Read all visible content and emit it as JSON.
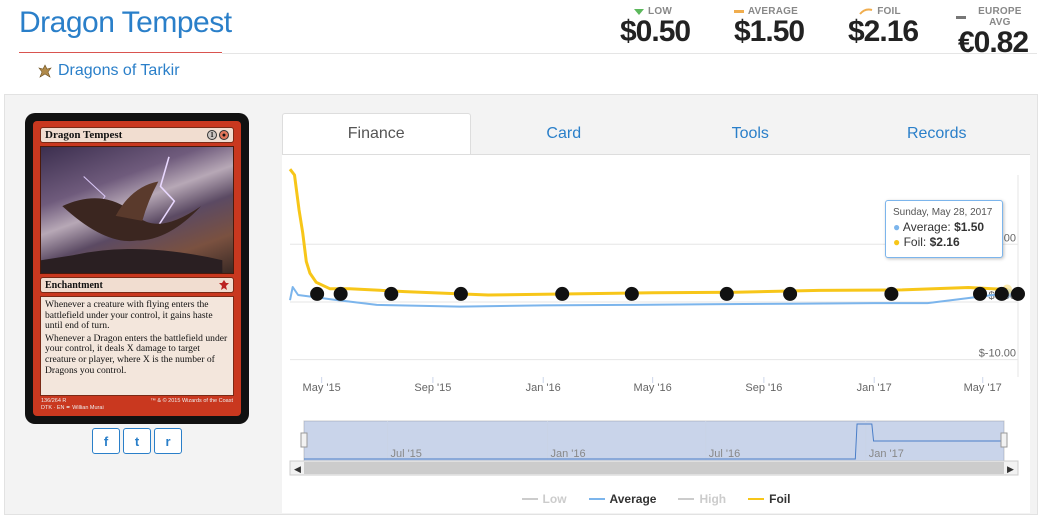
{
  "card": {
    "title": "Dragon Tempest",
    "set_name": "Dragons of Tarkir",
    "name_on_card": "Dragon Tempest",
    "mana_cost": [
      "1",
      "R"
    ],
    "type_line": "Enchantment",
    "rules_text": [
      "Whenever a creature with flying enters the battlefield under your control, it gains haste until end of turn.",
      "Whenever a Dragon enters the battlefield under your control, it deals X damage to target creature or player, where X is the number of Dragons you control."
    ],
    "collector_info": "136/264 R\nDTK · EN ✒ Willian Murai",
    "copyright": "™ & © 2015 Wizards of the Coast"
  },
  "prices": [
    {
      "label": "LOW",
      "value": "$0.50",
      "color": "#5cb85c",
      "marker": "triangle-down-icon"
    },
    {
      "label": "AVERAGE",
      "value": "$1.50",
      "color": "#f0ad4e",
      "marker": "dash-icon"
    },
    {
      "label": "FOIL",
      "value": "$2.16",
      "color": "#f0ad4e",
      "marker": "foil-swoosh-icon"
    },
    {
      "label": "EUROPE AVG",
      "value": "€0.82",
      "color": "#777777",
      "marker": "dash-icon"
    }
  ],
  "share": [
    {
      "name": "facebook-share-button",
      "glyph": "f"
    },
    {
      "name": "twitter-share-button",
      "glyph": "t"
    },
    {
      "name": "reddit-share-button",
      "glyph": "r"
    }
  ],
  "tabs": [
    "Finance",
    "Card",
    "Tools",
    "Records"
  ],
  "active_tab": "Finance",
  "tooltip": {
    "date": "Sunday, May 28, 2017",
    "average_label": "Average:",
    "average_value": "$1.50",
    "foil_label": "Foil:",
    "foil_value": "$2.16"
  },
  "legend": [
    {
      "name": "Low",
      "color": "#cccccc",
      "muted": true
    },
    {
      "name": "Average",
      "color": "#7cb5ec",
      "muted": false
    },
    {
      "name": "High",
      "color": "#cccccc",
      "muted": true
    },
    {
      "name": "Foil",
      "color": "#f7c619",
      "muted": false
    }
  ],
  "chart_data": {
    "type": "line",
    "x_ticks": [
      "May '15",
      "Sep '15",
      "Jan '16",
      "May '16",
      "Sep '16",
      "Jan '17",
      "May '17"
    ],
    "y_ticks": [
      "$10.00",
      "$0.00",
      "$-10.00"
    ],
    "y_tick_values": [
      10,
      0,
      -10
    ],
    "ylim": [
      -13,
      22
    ],
    "grid": true,
    "series": [
      {
        "name": "Average",
        "color": "#7cb5ec",
        "x": [
          "2015-03-27",
          "2015-03-30",
          "2015-04-05",
          "2015-04-20",
          "2015-05-15",
          "2015-07-01",
          "2015-10-01",
          "2016-01-01",
          "2016-04-01",
          "2016-07-01",
          "2016-10-01",
          "2017-01-01",
          "2017-03-01",
          "2017-05-28"
        ],
        "values": [
          0.3,
          2.6,
          1.2,
          0.9,
          0.4,
          -0.5,
          -0.8,
          -0.6,
          -0.5,
          -0.4,
          -0.3,
          -0.2,
          -0.2,
          1.5
        ]
      },
      {
        "name": "Foil",
        "color": "#f7c619",
        "x": [
          "2015-03-27",
          "2015-04-01",
          "2015-04-06",
          "2015-04-10",
          "2015-04-14",
          "2015-04-18",
          "2015-04-25",
          "2015-05-10",
          "2015-06-01",
          "2015-08-01",
          "2015-11-01",
          "2016-02-01",
          "2016-05-01",
          "2016-08-01",
          "2016-11-01",
          "2017-02-01",
          "2017-04-15",
          "2017-05-28"
        ],
        "values": [
          23,
          22,
          16,
          12,
          7,
          5,
          3.4,
          2.3,
          2.3,
          1.8,
          1.2,
          1.4,
          1.6,
          1.7,
          2.0,
          2.1,
          2.5,
          2.16
        ]
      }
    ],
    "set_markers": [
      "2015-04-26",
      "2015-05-22",
      "2015-07-17",
      "2015-10-02",
      "2016-01-22",
      "2016-04-08",
      "2016-07-22",
      "2016-09-30",
      "2017-01-20",
      "2017-04-28",
      "2017-05-22",
      "2017-06-09"
    ],
    "navigator_ticks": [
      "Jul '15",
      "Jan '16",
      "Jul '16",
      "Jan '17"
    ],
    "navigator_range": [
      "2015-03-27",
      "2017-06-09"
    ]
  }
}
